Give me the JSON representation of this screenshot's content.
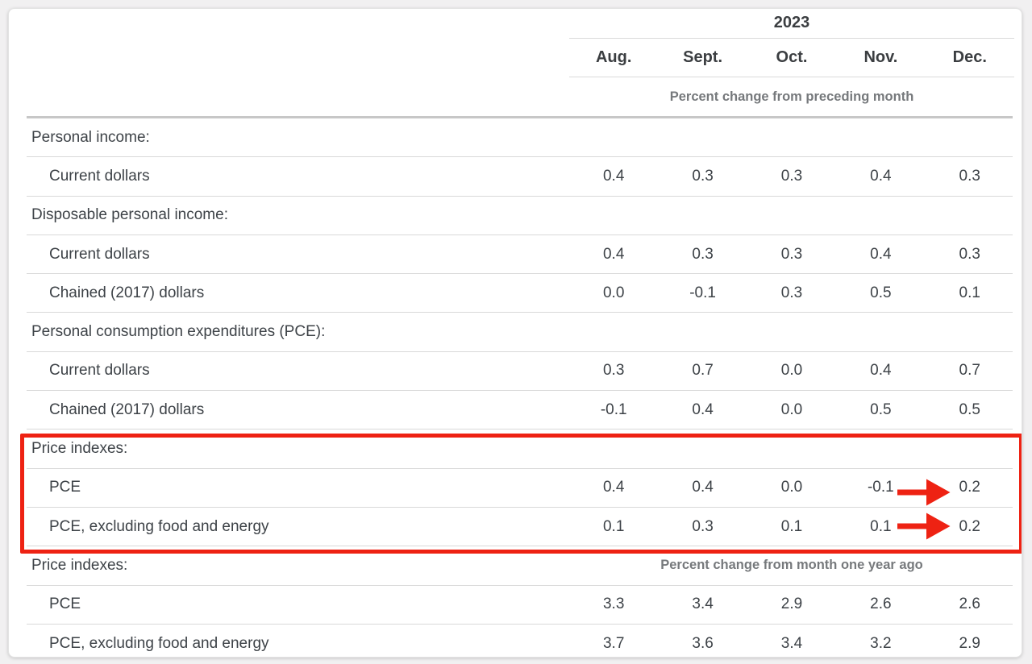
{
  "colors": {
    "accent_red": "#ee2213",
    "text_dark": "#3d4247",
    "text_gray": "#76797c",
    "rule_light": "#d9d9d9",
    "rule_heavy": "#c7c7c7",
    "card_bg": "#ffffff",
    "page_bg": "#f1f0f1"
  },
  "table": {
    "year": "2023",
    "months": [
      "Aug.",
      "Sept.",
      "Oct.",
      "Nov.",
      "Dec."
    ],
    "spanner_top": "Percent change from preceding month",
    "spanner_bottom": "Percent change from month one year ago",
    "rows": [
      {
        "type": "section",
        "label": "Personal income:"
      },
      {
        "type": "data",
        "label": "Current dollars",
        "values": [
          "0.4",
          "0.3",
          "0.3",
          "0.4",
          "0.3"
        ]
      },
      {
        "type": "section",
        "label": "Disposable personal income:"
      },
      {
        "type": "data",
        "label": "Current dollars",
        "values": [
          "0.4",
          "0.3",
          "0.3",
          "0.4",
          "0.3"
        ]
      },
      {
        "type": "data",
        "label": "Chained (2017) dollars",
        "values": [
          "0.0",
          "-0.1",
          "0.3",
          "0.5",
          "0.1"
        ]
      },
      {
        "type": "section",
        "label": "Personal consumption expenditures (PCE):"
      },
      {
        "type": "data",
        "label": "Current dollars",
        "values": [
          "0.3",
          "0.7",
          "0.0",
          "0.4",
          "0.7"
        ]
      },
      {
        "type": "data",
        "label": "Chained (2017) dollars",
        "values": [
          "-0.1",
          "0.4",
          "0.0",
          "0.5",
          "0.5"
        ]
      },
      {
        "type": "section",
        "label": "Price indexes:",
        "highlighted": true
      },
      {
        "type": "data",
        "label": "PCE",
        "values": [
          "0.4",
          "0.4",
          "0.0",
          "-0.1",
          "0.2"
        ],
        "arrow": true,
        "highlighted": true
      },
      {
        "type": "data",
        "label": "PCE, excluding food and energy",
        "values": [
          "0.1",
          "0.3",
          "0.1",
          "0.1",
          "0.2"
        ],
        "arrow": true,
        "highlighted": true
      },
      {
        "type": "section",
        "label": "Price indexes:",
        "note": "Percent change from month one year ago"
      },
      {
        "type": "data",
        "label": "PCE",
        "values": [
          "3.3",
          "3.4",
          "2.9",
          "2.6",
          "2.6"
        ]
      },
      {
        "type": "data",
        "label": "PCE, excluding food and energy",
        "values": [
          "3.7",
          "3.6",
          "3.4",
          "3.2",
          "2.9"
        ]
      }
    ],
    "annotations": {
      "highlight_box": "red rectangle around Price indexes month-over-month section",
      "arrow_rows": [
        "PCE",
        "PCE, excluding food and energy"
      ],
      "arrow_target_column": "Dec."
    }
  }
}
